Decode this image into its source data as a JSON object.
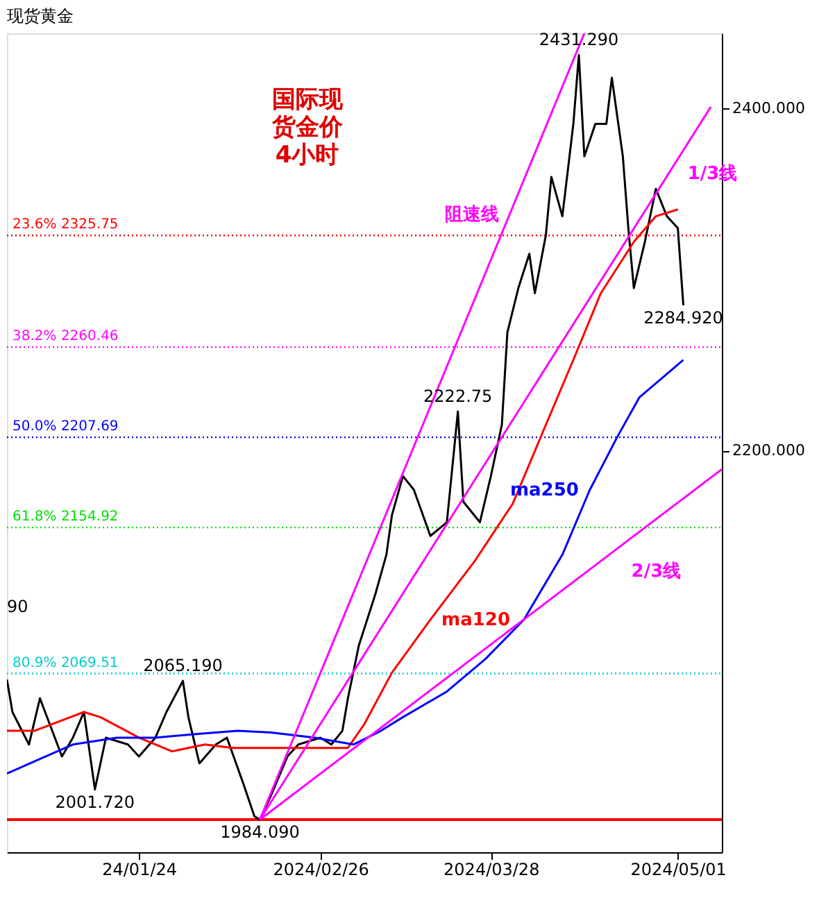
{
  "chart_data": {
    "type": "line",
    "title": "现货黄金",
    "grid": false,
    "line_style": "solid",
    "marker": "none",
    "xlim": [
      "2023-12-31",
      "2024-05-09"
    ],
    "ylim": [
      1965,
      2444
    ],
    "xticks": [
      {
        "value": "2024-01-24",
        "label": "24/01/24"
      },
      {
        "value": "2024-02-26",
        "label": "2024/02/26"
      },
      {
        "value": "2024-03-28",
        "label": "2024/03/28"
      },
      {
        "value": "2024-05-01",
        "label": "2024/05/01"
      }
    ],
    "yticks": [
      {
        "value": 2200,
        "label": "2200.000"
      },
      {
        "value": 2400,
        "label": "2400.000"
      }
    ],
    "series": [
      {
        "color": "#000000",
        "x": [
          "2023-12-31",
          "2024-01-01",
          "2024-01-04",
          "2024-01-06",
          "2024-01-10",
          "2024-01-12",
          "2024-01-14",
          "2024-01-16",
          "2024-01-18",
          "2024-01-22",
          "2024-01-24",
          "2024-01-27",
          "2024-01-29",
          "2024-02-01",
          "2024-02-02",
          "2024-02-04",
          "2024-02-07",
          "2024-02-09",
          "2024-02-12",
          "2024-02-14",
          "2024-02-15",
          "2024-02-17",
          "2024-02-20",
          "2024-02-22",
          "2024-02-26",
          "2024-02-28",
          "2024-03-01",
          "2024-03-02",
          "2024-03-04",
          "2024-03-07",
          "2024-03-09",
          "2024-03-10",
          "2024-03-12",
          "2024-03-14",
          "2024-03-17",
          "2024-03-20",
          "2024-03-22",
          "2024-03-23",
          "2024-03-26",
          "2024-03-28",
          "2024-03-30",
          "2024-03-31",
          "2024-04-02",
          "2024-04-04",
          "2024-04-05",
          "2024-04-07",
          "2024-04-08",
          "2024-04-10",
          "2024-04-12",
          "2024-04-13",
          "2024-04-14",
          "2024-04-16",
          "2024-04-18",
          "2024-04-19",
          "2024-04-21",
          "2024-04-22",
          "2024-04-23",
          "2024-04-25",
          "2024-04-27",
          "2024-04-29",
          "2024-05-01",
          "2024-05-02"
        ],
        "values": [
          2066,
          2047,
          2028,
          2055,
          2021,
          2032,
          2047,
          2001.72,
          2032,
          2028,
          2021,
          2032,
          2047,
          2065.19,
          2044,
          2017,
          2028,
          2032,
          2005,
          1986,
          1984.09,
          1998,
          2021,
          2028,
          2032,
          2028,
          2036,
          2055,
          2086,
          2116,
          2139,
          2162,
          2185,
          2177,
          2150,
          2158,
          2222.75,
          2170,
          2158,
          2185,
          2215,
          2269,
          2295,
          2315,
          2292,
          2326,
          2360,
          2337,
          2391,
          2431.29,
          2372,
          2391,
          2391,
          2418,
          2372,
          2330,
          2295,
          2322,
          2353,
          2337,
          2330,
          2284.92
        ]
      },
      {
        "name": "ma120",
        "color": "#ff0000",
        "x": [
          "2023-12-31",
          "2024-01-05",
          "2024-01-14",
          "2024-01-17",
          "2024-01-24",
          "2024-01-30",
          "2024-02-05",
          "2024-02-10",
          "2024-02-17",
          "2024-02-25",
          "2024-03-02",
          "2024-03-05",
          "2024-03-10",
          "2024-03-17",
          "2024-03-25",
          "2024-04-01",
          "2024-04-07",
          "2024-04-12",
          "2024-04-17",
          "2024-04-23",
          "2024-04-27",
          "2024-05-01"
        ],
        "values": [
          2036,
          2036,
          2047,
          2044,
          2032,
          2024,
          2028,
          2026,
          2026,
          2026,
          2026,
          2040,
          2070,
          2101,
          2135,
          2169,
          2215,
          2253,
          2292,
          2322,
          2337,
          2341
        ]
      },
      {
        "name": "ma250",
        "color": "#0000ff",
        "x": [
          "2023-12-31",
          "2024-01-07",
          "2024-01-12",
          "2024-01-20",
          "2024-01-27",
          "2024-02-03",
          "2024-02-11",
          "2024-02-17",
          "2024-02-25",
          "2024-03-03",
          "2024-03-08",
          "2024-03-12",
          "2024-03-20",
          "2024-03-27",
          "2024-04-03",
          "2024-04-10",
          "2024-04-15",
          "2024-04-20",
          "2024-04-24",
          "2024-05-02"
        ],
        "values": [
          2011,
          2021,
          2028,
          2032,
          2032,
          2034,
          2036,
          2035,
          2032,
          2028,
          2036,
          2044,
          2059,
          2078,
          2101,
          2139,
          2177,
          2208,
          2231,
          2253
        ]
      },
      {
        "name": "阻速线",
        "color": "#ff00ff",
        "x": [
          "2024-02-15",
          "2024-04-14"
        ],
        "values": [
          1984.09,
          2444
        ]
      },
      {
        "name": "1/3线",
        "color": "#ff00ff",
        "x": [
          "2024-02-15",
          "2024-05-07"
        ],
        "values": [
          1984.09,
          2401
        ]
      },
      {
        "name": "2/3线",
        "color": "#ff00ff",
        "x": [
          "2024-02-15",
          "2024-05-09"
        ],
        "values": [
          1984.09,
          2189
        ]
      }
    ],
    "ref_lines": [
      {
        "axis": "y",
        "value": 2325.75,
        "label": "23.6%   2325.75",
        "color": "#ff0000",
        "line_style": "dotted"
      },
      {
        "axis": "y",
        "value": 2260.46,
        "label": "38.2%   2260.46",
        "color": "#ff00ff",
        "line_style": "dotted"
      },
      {
        "axis": "y",
        "value": 2207.69,
        "label": "50.0%   2207.69",
        "color": "#0000ff",
        "line_style": "dotted"
      },
      {
        "axis": "y",
        "value": 2154.92,
        "label": "61.8%   2154.92",
        "color": "#00dd00",
        "line_style": "dotted"
      },
      {
        "axis": "y",
        "value": 2069.51,
        "label": "80.9%   2069.51",
        "color": "#00cccc",
        "line_style": "dotted"
      },
      {
        "axis": "y",
        "value": 1984.09,
        "color": "#ff0000",
        "line_style": "solid"
      }
    ],
    "annotations": [
      "国际现货金价4小时",
      {
        "text": "2431.290",
        "x": "2024-04-13",
        "y": 2431.29
      },
      {
        "text": "2284.920",
        "x": "2024-05-02",
        "y": 2284.92
      },
      {
        "text": "1984.090",
        "x": "2024-02-15",
        "y": 1984.09
      },
      {
        "text": "2001.720",
        "x": "2024-01-16",
        "y": 2001.72
      },
      {
        "text": "2065.190",
        "x": "2024-02-01",
        "y": 2065.19
      },
      {
        "text": "2222.75",
        "x": "2024-03-22",
        "y": 2222.75
      },
      "90"
    ]
  }
}
